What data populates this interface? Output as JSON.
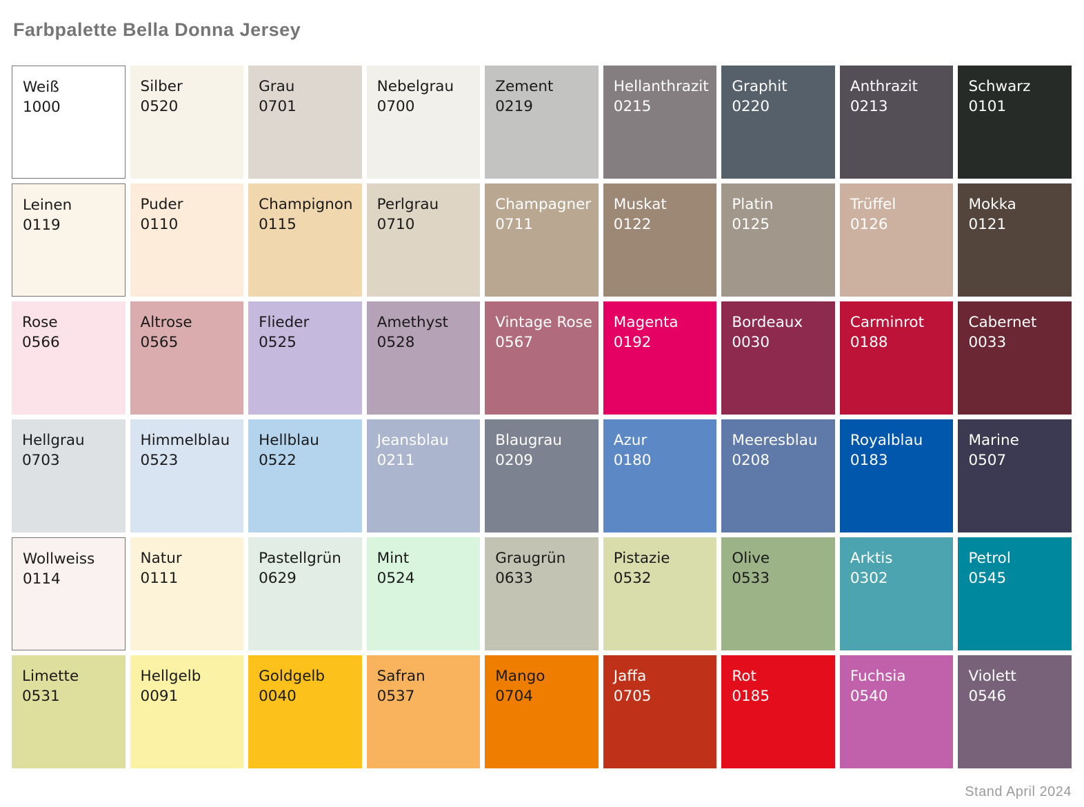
{
  "page": {
    "title": "Farbpalette Bella Donna Jersey",
    "footer": "Stand April 2024"
  },
  "palette": {
    "columns": 9,
    "text_dark": "#1a1a1a",
    "text_light": "#ffffff",
    "swatches": [
      {
        "name": "Weiß",
        "code": "1000",
        "bg": "#ffffff",
        "text_color": "#1a1a1a",
        "border": true
      },
      {
        "name": "Silber",
        "code": "0520",
        "bg": "#f8f3e9",
        "text_color": "#1a1a1a",
        "border": false
      },
      {
        "name": "Grau",
        "code": "0701",
        "bg": "#ddd7cf",
        "text_color": "#1a1a1a",
        "border": false
      },
      {
        "name": "Nebelgrau",
        "code": "0700",
        "bg": "#f2f0eb",
        "text_color": "#1a1a1a",
        "border": false
      },
      {
        "name": "Zement",
        "code": "0219",
        "bg": "#c3c3c1",
        "text_color": "#1a1a1a",
        "border": false
      },
      {
        "name": "Hellanthrazit",
        "code": "0215",
        "bg": "#847e81",
        "text_color": "#ffffff",
        "border": false
      },
      {
        "name": "Graphit",
        "code": "0220",
        "bg": "#56606a",
        "text_color": "#ffffff",
        "border": false
      },
      {
        "name": "Anthrazit",
        "code": "0213",
        "bg": "#544e57",
        "text_color": "#ffffff",
        "border": false
      },
      {
        "name": "Schwarz",
        "code": "0101",
        "bg": "#262b27",
        "text_color": "#ffffff",
        "border": false
      },
      {
        "name": "Leinen",
        "code": "0119",
        "bg": "#faf4e9",
        "text_color": "#1a1a1a",
        "border": true
      },
      {
        "name": "Puder",
        "code": "0110",
        "bg": "#fcecd9",
        "text_color": "#1a1a1a",
        "border": false
      },
      {
        "name": "Champignon",
        "code": "0115",
        "bg": "#f1d7ae",
        "text_color": "#1a1a1a",
        "border": false
      },
      {
        "name": "Perlgrau",
        "code": "0710",
        "bg": "#ded5c5",
        "text_color": "#1a1a1a",
        "border": false
      },
      {
        "name": "Champagner",
        "code": "0711",
        "bg": "#b9a791",
        "text_color": "#ffffff",
        "border": false
      },
      {
        "name": "Muskat",
        "code": "0122",
        "bg": "#9d8875",
        "text_color": "#ffffff",
        "border": false
      },
      {
        "name": "Platin",
        "code": "0125",
        "bg": "#a2978b",
        "text_color": "#ffffff",
        "border": false
      },
      {
        "name": "Trüffel",
        "code": "0126",
        "bg": "#ccb0a0",
        "text_color": "#ffffff",
        "border": false
      },
      {
        "name": "Mokka",
        "code": "0121",
        "bg": "#53443c",
        "text_color": "#ffffff",
        "border": false
      },
      {
        "name": "Rose",
        "code": "0566",
        "bg": "#fce3ea",
        "text_color": "#1a1a1a",
        "border": false
      },
      {
        "name": "Altrose",
        "code": "0565",
        "bg": "#daacad",
        "text_color": "#1a1a1a",
        "border": false
      },
      {
        "name": "Flieder",
        "code": "0525",
        "bg": "#c5bade",
        "text_color": "#1a1a1a",
        "border": false
      },
      {
        "name": "Amethyst",
        "code": "0528",
        "bg": "#b6a2b7",
        "text_color": "#1a1a1a",
        "border": false
      },
      {
        "name": "Vintage Rose",
        "code": "0567",
        "bg": "#b06c7c",
        "text_color": "#ffffff",
        "border": false
      },
      {
        "name": "Magenta",
        "code": "0192",
        "bg": "#e50063",
        "text_color": "#ffffff",
        "border": false
      },
      {
        "name": "Bordeaux",
        "code": "0030",
        "bg": "#8e2a4e",
        "text_color": "#ffffff",
        "border": false
      },
      {
        "name": "Carminrot",
        "code": "0188",
        "bg": "#bd1339",
        "text_color": "#ffffff",
        "border": false
      },
      {
        "name": "Cabernet",
        "code": "0033",
        "bg": "#6b2834",
        "text_color": "#ffffff",
        "border": false
      },
      {
        "name": "Hellgrau",
        "code": "0703",
        "bg": "#dde1e4",
        "text_color": "#1a1a1a",
        "border": false
      },
      {
        "name": "Himmelblau",
        "code": "0523",
        "bg": "#d9e4f2",
        "text_color": "#1a1a1a",
        "border": false
      },
      {
        "name": "Hellblau",
        "code": "0522",
        "bg": "#b4d3ec",
        "text_color": "#1a1a1a",
        "border": false
      },
      {
        "name": "Jeansblau",
        "code": "0211",
        "bg": "#abb5ce",
        "text_color": "#ffffff",
        "border": false
      },
      {
        "name": "Blaugrau",
        "code": "0209",
        "bg": "#7d8290",
        "text_color": "#ffffff",
        "border": false
      },
      {
        "name": "Azur",
        "code": "0180",
        "bg": "#5c88c6",
        "text_color": "#ffffff",
        "border": false
      },
      {
        "name": "Meeresblau",
        "code": "0208",
        "bg": "#5f7aa8",
        "text_color": "#ffffff",
        "border": false
      },
      {
        "name": "Royalblau",
        "code": "0183",
        "bg": "#0057ab",
        "text_color": "#ffffff",
        "border": false
      },
      {
        "name": "Marine",
        "code": "0507",
        "bg": "#3b3a52",
        "text_color": "#ffffff",
        "border": false
      },
      {
        "name": "Wollweiss",
        "code": "0114",
        "bg": "#faf1f1",
        "text_color": "#1a1a1a",
        "border": true
      },
      {
        "name": "Natur",
        "code": "0111",
        "bg": "#fcf3d8",
        "text_color": "#1a1a1a",
        "border": false
      },
      {
        "name": "Pastellgrün",
        "code": "0629",
        "bg": "#e1ede5",
        "text_color": "#1a1a1a",
        "border": false
      },
      {
        "name": "Mint",
        "code": "0524",
        "bg": "#d9f5dd",
        "text_color": "#1a1a1a",
        "border": false
      },
      {
        "name": "Graugrün",
        "code": "0633",
        "bg": "#c3c3b3",
        "text_color": "#1a1a1a",
        "border": false
      },
      {
        "name": "Pistazie",
        "code": "0532",
        "bg": "#d9ddab",
        "text_color": "#1a1a1a",
        "border": false
      },
      {
        "name": "Olive",
        "code": "0533",
        "bg": "#9cb287",
        "text_color": "#1a1a1a",
        "border": false
      },
      {
        "name": "Arktis",
        "code": "0302",
        "bg": "#4ba4b0",
        "text_color": "#ffffff",
        "border": false
      },
      {
        "name": "Petrol",
        "code": "0545",
        "bg": "#00889e",
        "text_color": "#ffffff",
        "border": false
      },
      {
        "name": "Limette",
        "code": "0531",
        "bg": "#dede9d",
        "text_color": "#1a1a1a",
        "border": false
      },
      {
        "name": "Hellgelb",
        "code": "0091",
        "bg": "#fcf2a5",
        "text_color": "#1a1a1a",
        "border": false
      },
      {
        "name": "Goldgelb",
        "code": "0040",
        "bg": "#fcc21b",
        "text_color": "#1a1a1a",
        "border": false
      },
      {
        "name": "Safran",
        "code": "0537",
        "bg": "#f9b35c",
        "text_color": "#1a1a1a",
        "border": false
      },
      {
        "name": "Mango",
        "code": "0704",
        "bg": "#ee7d00",
        "text_color": "#1a1a1a",
        "border": false
      },
      {
        "name": "Jaffa",
        "code": "0705",
        "bg": "#bf3118",
        "text_color": "#ffffff",
        "border": false
      },
      {
        "name": "Rot",
        "code": "0185",
        "bg": "#e30d1b",
        "text_color": "#ffffff",
        "border": false
      },
      {
        "name": "Fuchsia",
        "code": "0540",
        "bg": "#c161ac",
        "text_color": "#ffffff",
        "border": false
      },
      {
        "name": "Violett",
        "code": "0546",
        "bg": "#786279",
        "text_color": "#ffffff",
        "border": false
      }
    ]
  }
}
